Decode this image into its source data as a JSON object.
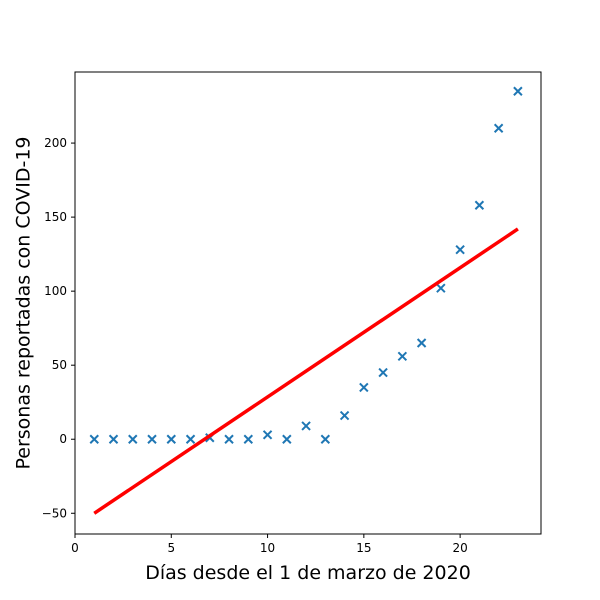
{
  "chart_data": {
    "type": "scatter",
    "title": "",
    "xlabel": "Días desde el 1 de marzo de 2020",
    "ylabel": "Personas reportadas con COVID-19",
    "xlim": [
      0,
      24.2
    ],
    "ylim": [
      -64,
      248
    ],
    "xticks": [
      0,
      5,
      10,
      15,
      20
    ],
    "yticks": [
      -50,
      0,
      50,
      100,
      150,
      200
    ],
    "xtick_labels": [
      "0",
      "5",
      "10",
      "15",
      "20"
    ],
    "ytick_labels": [
      "−50",
      "0",
      "50",
      "100",
      "150",
      "200"
    ],
    "grid": false,
    "legend": "none",
    "series": [
      {
        "kind": "scatter",
        "marker": "x",
        "color": "#1f77b4",
        "x": [
          1,
          2,
          3,
          4,
          5,
          6,
          7,
          8,
          9,
          10,
          11,
          12,
          13,
          14,
          15,
          16,
          17,
          18,
          19,
          20,
          21,
          22,
          23
        ],
        "y": [
          0,
          0,
          0,
          0,
          0,
          0,
          1,
          0,
          0,
          3,
          0,
          9,
          0,
          16,
          35,
          45,
          56,
          65,
          102,
          128,
          158,
          210,
          235
        ]
      },
      {
        "kind": "line",
        "color": "#ff0000",
        "x": [
          1,
          23
        ],
        "y": [
          -50,
          142
        ]
      }
    ]
  }
}
